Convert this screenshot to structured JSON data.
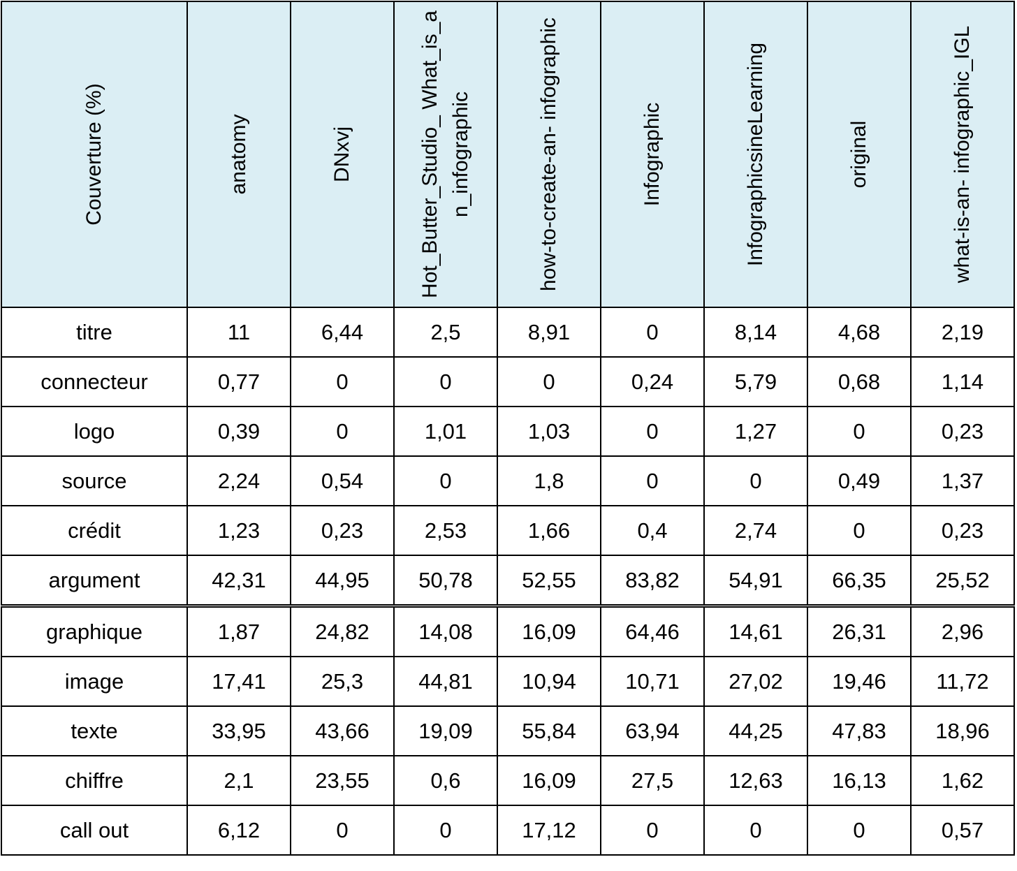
{
  "table": {
    "corner_label": "Couverture (%)",
    "columns": [
      "anatomy",
      "DNxvj",
      "Hot_Butter_Studio_ What_is_an_infographic",
      "how-to-create-an- infographic",
      "Infographic",
      "InfographicsineLearning",
      "original",
      "what-is-an- infographic_IGL"
    ],
    "rows": [
      {
        "label": "titre",
        "values": [
          "11",
          "6,44",
          "2,5",
          "8,91",
          "0",
          "8,14",
          "4,68",
          "2,19"
        ]
      },
      {
        "label": "connecteur",
        "values": [
          "0,77",
          "0",
          "0",
          "0",
          "0,24",
          "5,79",
          "0,68",
          "1,14"
        ]
      },
      {
        "label": "logo",
        "values": [
          "0,39",
          "0",
          "1,01",
          "1,03",
          "0",
          "1,27",
          "0",
          "0,23"
        ]
      },
      {
        "label": "source",
        "values": [
          "2,24",
          "0,54",
          "0",
          "1,8",
          "0",
          "0",
          "0,49",
          "1,37"
        ]
      },
      {
        "label": "crédit",
        "values": [
          "1,23",
          "0,23",
          "2,53",
          "1,66",
          "0,4",
          "2,74",
          "0",
          "0,23"
        ]
      },
      {
        "label": "argument",
        "values": [
          "42,31",
          "44,95",
          "50,78",
          "52,55",
          "83,82",
          "54,91",
          "66,35",
          "25,52"
        ]
      },
      {
        "label": "graphique",
        "values": [
          "1,87",
          "24,82",
          "14,08",
          "16,09",
          "64,46",
          "14,61",
          "26,31",
          "2,96"
        ]
      },
      {
        "label": "image",
        "values": [
          "17,41",
          "25,3",
          "44,81",
          "10,94",
          "10,71",
          "27,02",
          "19,46",
          "11,72"
        ]
      },
      {
        "label": "texte",
        "values": [
          "33,95",
          "43,66",
          "19,09",
          "55,84",
          "63,94",
          "44,25",
          "47,83",
          "18,96"
        ]
      },
      {
        "label": "chiffre",
        "values": [
          "2,1",
          "23,55",
          "0,6",
          "16,09",
          "27,5",
          "12,63",
          "16,13",
          "1,62"
        ]
      },
      {
        "label": "call out",
        "values": [
          "6,12",
          "0",
          "0",
          "17,12",
          "0",
          "0",
          "0",
          "0,57"
        ]
      }
    ],
    "header_background": "#dbeef4"
  }
}
